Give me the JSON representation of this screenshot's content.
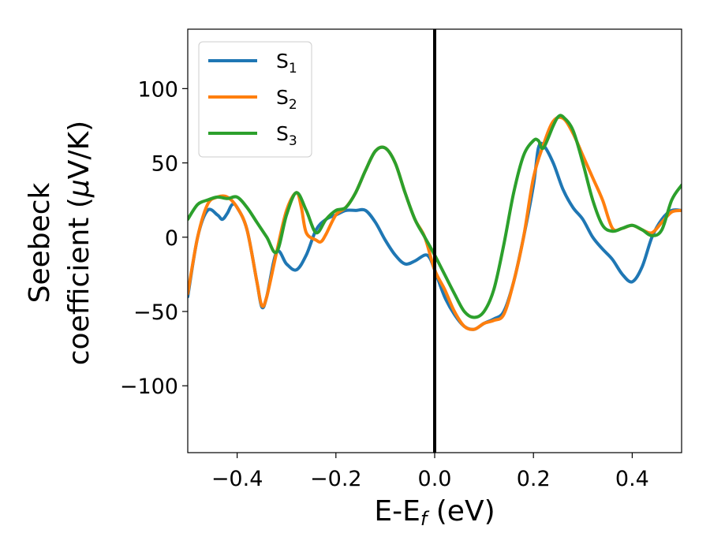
{
  "chart_data": {
    "type": "line",
    "xlabel": {
      "base": "E-E",
      "sub": "f",
      "unit": " (eV)"
    },
    "ylabel": {
      "line1": "Seebeck",
      "line2_text": "coefficient  (",
      "mu": "μ",
      "line2_unit": "V/K)"
    },
    "xlim": [
      -0.5,
      0.5
    ],
    "ylim": [
      -145,
      140
    ],
    "x_ticks": [
      -0.4,
      -0.2,
      0.0,
      0.2,
      0.4
    ],
    "x_tick_labels": [
      "−0.4",
      "−0.2",
      "0.0",
      "0.2",
      "0.4"
    ],
    "y_ticks": [
      100,
      50,
      0,
      -50,
      -100
    ],
    "y_tick_labels": [
      "100",
      "50",
      "0",
      "−50",
      "−100"
    ],
    "grid": false,
    "legend_position": "top-left",
    "vline": {
      "x": 0.0,
      "color": "#000000"
    },
    "series": [
      {
        "name": "S1",
        "label_base": "S",
        "label_sub": "1",
        "color": "#1f77b4",
        "x": [
          -0.5,
          -0.48,
          -0.46,
          -0.44,
          -0.43,
          -0.42,
          -0.41,
          -0.4,
          -0.38,
          -0.36,
          -0.35,
          -0.34,
          -0.32,
          -0.3,
          -0.28,
          -0.26,
          -0.24,
          -0.22,
          -0.2,
          -0.18,
          -0.16,
          -0.14,
          -0.12,
          -0.1,
          -0.08,
          -0.06,
          -0.04,
          -0.02,
          -0.01,
          0.0,
          0.02,
          0.04,
          0.06,
          0.08,
          0.1,
          0.12,
          0.14,
          0.16,
          0.18,
          0.2,
          0.21,
          0.22,
          0.24,
          0.26,
          0.28,
          0.3,
          0.32,
          0.34,
          0.36,
          0.38,
          0.4,
          0.42,
          0.44,
          0.46,
          0.48,
          0.5
        ],
        "y": [
          -40,
          0,
          18,
          15,
          12,
          16,
          22,
          20,
          5,
          -30,
          -47,
          -40,
          -10,
          -18,
          -22,
          -12,
          5,
          12,
          15,
          18,
          18,
          18,
          10,
          -2,
          -12,
          -18,
          -16,
          -12,
          -14,
          -22,
          -40,
          -52,
          -60,
          -62,
          -58,
          -55,
          -50,
          -30,
          0,
          35,
          60,
          62,
          50,
          32,
          20,
          12,
          0,
          -8,
          -15,
          -25,
          -30,
          -20,
          0,
          12,
          18,
          18
        ]
      },
      {
        "name": "S2",
        "label_base": "S",
        "label_sub": "2",
        "color": "#ff7f0e",
        "x": [
          -0.5,
          -0.48,
          -0.46,
          -0.44,
          -0.42,
          -0.4,
          -0.38,
          -0.36,
          -0.35,
          -0.34,
          -0.32,
          -0.3,
          -0.28,
          -0.27,
          -0.26,
          -0.24,
          -0.23,
          -0.22,
          -0.2,
          -0.18,
          -0.16,
          -0.14,
          -0.12,
          -0.1,
          -0.08,
          -0.06,
          -0.04,
          -0.02,
          0.0,
          0.02,
          0.04,
          0.06,
          0.08,
          0.1,
          0.12,
          0.14,
          0.16,
          0.18,
          0.2,
          0.22,
          0.24,
          0.26,
          0.28,
          0.3,
          0.32,
          0.34,
          0.36,
          0.38,
          0.4,
          0.42,
          0.44,
          0.46,
          0.48,
          0.5
        ],
        "y": [
          -38,
          0,
          22,
          27,
          27,
          20,
          5,
          -30,
          -46,
          -40,
          -10,
          18,
          30,
          20,
          3,
          -2,
          -3,
          2,
          15,
          20,
          30,
          45,
          58,
          60,
          50,
          30,
          12,
          0,
          -22,
          -35,
          -50,
          -60,
          -62,
          -58,
          -56,
          -52,
          -30,
          0,
          40,
          62,
          78,
          80,
          70,
          55,
          40,
          25,
          6,
          6,
          8,
          5,
          3,
          10,
          17,
          18
        ]
      },
      {
        "name": "S3",
        "label_base": "S",
        "label_sub": "3",
        "color": "#2ca02c",
        "x": [
          -0.5,
          -0.48,
          -0.46,
          -0.44,
          -0.42,
          -0.4,
          -0.38,
          -0.36,
          -0.34,
          -0.32,
          -0.3,
          -0.28,
          -0.26,
          -0.24,
          -0.22,
          -0.2,
          -0.18,
          -0.16,
          -0.14,
          -0.12,
          -0.1,
          -0.08,
          -0.06,
          -0.04,
          -0.02,
          0.0,
          0.02,
          0.04,
          0.06,
          0.08,
          0.1,
          0.12,
          0.14,
          0.16,
          0.18,
          0.2,
          0.21,
          0.22,
          0.24,
          0.25,
          0.26,
          0.28,
          0.3,
          0.32,
          0.34,
          0.36,
          0.38,
          0.4,
          0.42,
          0.44,
          0.46,
          0.48,
          0.5
        ],
        "y": [
          12,
          22,
          25,
          27,
          26,
          27,
          20,
          10,
          0,
          -10,
          15,
          30,
          18,
          3,
          12,
          18,
          20,
          30,
          45,
          58,
          60,
          50,
          30,
          12,
          0,
          -12,
          -25,
          -38,
          -50,
          -54,
          -50,
          -35,
          -5,
          30,
          55,
          65,
          65,
          60,
          75,
          81,
          81,
          72,
          50,
          25,
          8,
          4,
          6,
          8,
          5,
          1,
          5,
          25,
          35
        ]
      }
    ]
  }
}
